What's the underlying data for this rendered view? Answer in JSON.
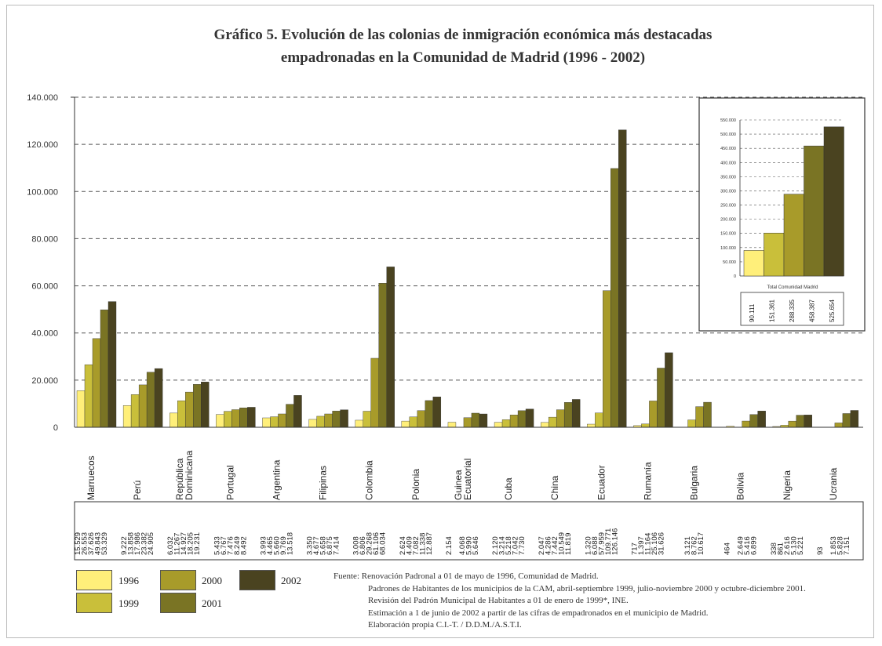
{
  "title": {
    "line1": "Gráfico 5. Evolución de las colonias de inmigración económica más destacadas",
    "line2": "empadronadas en la Comunidad de Madrid (1996 - 2002)"
  },
  "chart_data": [
    {
      "type": "bar",
      "title": "Gráfico 5. Evolución de las colonias de inmigración económica más destacadas empadronadas en la Comunidad de Madrid (1996 - 2002)",
      "categories": [
        "Marruecos",
        "Perú",
        "República Dominicana",
        "Portugal",
        "Argentina",
        "Filipinas",
        "Colombia",
        "Polonia",
        "Guinea Ecuatorial",
        "Cuba",
        "China",
        "Ecuador",
        "Rumanía",
        "Bulgaria",
        "Bolivia",
        "Nigeria",
        "Ucrania"
      ],
      "category_lines": [
        [
          "Marruecos"
        ],
        [
          "Perú"
        ],
        [
          "República",
          "Dominicana"
        ],
        [
          "Portugal"
        ],
        [
          "Argentina"
        ],
        [
          "Filipinas"
        ],
        [
          "Colombia"
        ],
        [
          "Polonia"
        ],
        [
          "Guinea",
          "Ecuatorial"
        ],
        [
          "Cuba"
        ],
        [
          "China"
        ],
        [
          "Ecuador"
        ],
        [
          "Rumanía"
        ],
        [
          "Bulgaria"
        ],
        [
          "Bolivia"
        ],
        [
          "Nigeria"
        ],
        [
          "Ucrania"
        ]
      ],
      "series": [
        {
          "name": "1996",
          "values": [
            15529,
            9222,
            6032,
            5433,
            3993,
            3350,
            3008,
            2624,
            2154,
            2120,
            2047,
            1320,
            717,
            0,
            464,
            338,
            93
          ]
        },
        {
          "name": "1999",
          "values": [
            26553,
            13858,
            11267,
            6767,
            4465,
            4677,
            6806,
            4409,
            0,
            3214,
            4286,
            6088,
            1397,
            3121,
            0,
            861,
            0
          ]
        },
        {
          "name": "2000",
          "values": [
            37626,
            17986,
            14927,
            7476,
            5660,
            5658,
            29268,
            7082,
            4068,
            5218,
            7442,
            57959,
            11164,
            8762,
            2649,
            2616,
            1853
          ]
        },
        {
          "name": "2001",
          "values": [
            49843,
            23382,
            18205,
            8249,
            9769,
            6875,
            61106,
            11338,
            5990,
            7042,
            10549,
            109771,
            25106,
            10617,
            5416,
            5130,
            5828
          ]
        },
        {
          "name": "2002",
          "values": [
            53329,
            24905,
            19231,
            8492,
            13518,
            7414,
            68034,
            12887,
            5646,
            7730,
            11819,
            126146,
            31626,
            0,
            6899,
            5221,
            7151
          ]
        }
      ],
      "table_values": [
        [
          "15.529",
          "26.553",
          "37.626",
          "49.843",
          "53.329"
        ],
        [
          "9.222",
          "13.858",
          "17.986",
          "23.382",
          "24.905"
        ],
        [
          "6.032",
          "11.267",
          "14.927",
          "18.205",
          "19.231"
        ],
        [
          "5.433",
          "6.767",
          "7.476",
          "8.249",
          "8.492"
        ],
        [
          "3.993",
          "4.465",
          "5.660",
          "9.769",
          "13.518"
        ],
        [
          "3.350",
          "4.677",
          "5.658",
          "6.875",
          "7.414"
        ],
        [
          "3.008",
          "6.806",
          "29.268",
          "61.106",
          "68.034"
        ],
        [
          "2.624",
          "4.409",
          "7.082",
          "11.338",
          "12.887"
        ],
        [
          "2.154",
          "",
          "4.068",
          "5.990",
          "5.646"
        ],
        [
          "2.120",
          "3.214",
          "5.218",
          "7.042",
          "7.730"
        ],
        [
          "2.047",
          "4.286",
          "7.442",
          "10.549",
          "11.819"
        ],
        [
          "1.320",
          "6.088",
          "57.959",
          "109.771",
          "126.146"
        ],
        [
          "717",
          "1.397",
          "11.164",
          "25.106",
          "31.626"
        ],
        [
          "",
          "3.121",
          "8.762",
          "10.617",
          ""
        ],
        [
          "464",
          "",
          "2.649",
          "5.416",
          "6.899"
        ],
        [
          "338",
          "861",
          "2.616",
          "5.130",
          "5.221"
        ],
        [
          "93",
          "",
          "1.853",
          "5.828",
          "7.151"
        ]
      ],
      "ylim": [
        0,
        140000
      ],
      "yticks": [
        "0",
        "20.000",
        "40.000",
        "60.000",
        "80.000",
        "100.000",
        "120.000",
        "140.000"
      ],
      "ytick_values": [
        0,
        20000,
        40000,
        60000,
        80000,
        100000,
        120000,
        140000
      ],
      "grid": "dashed horizontal"
    },
    {
      "type": "bar",
      "title": "",
      "categories": [
        "Total Comunidad Madrid"
      ],
      "series": [
        {
          "name": "1996",
          "values": [
            90111
          ]
        },
        {
          "name": "1999",
          "values": [
            151361
          ]
        },
        {
          "name": "2000",
          "values": [
            288335
          ]
        },
        {
          "name": "2001",
          "values": [
            458387
          ]
        },
        {
          "name": "2002",
          "values": [
            525654
          ]
        }
      ],
      "table_values": [
        "90.111",
        "151.361",
        "288.335",
        "458.387",
        "525.654"
      ],
      "ylim": [
        0,
        550000
      ],
      "yticks": [
        "0",
        "50.000",
        "100.000",
        "150.000",
        "200.000",
        "250.000",
        "300.000",
        "350.000",
        "400.000",
        "450.000",
        "500.000",
        "550.000"
      ],
      "ytick_values": [
        0,
        50000,
        100000,
        150000,
        200000,
        250000,
        300000,
        350000,
        400000,
        450000,
        500000,
        550000
      ],
      "placement": "inset top-right"
    }
  ],
  "colors": {
    "1996": "#ffef7a",
    "1999": "#c9bf3a",
    "2000": "#a89b2a",
    "2001": "#7a7424",
    "2002": "#4a4320",
    "grid": "#555555",
    "axis": "#333333"
  },
  "legend": [
    {
      "label": "1996",
      "key": "1996"
    },
    {
      "label": "1999",
      "key": "1999"
    },
    {
      "label": "2000",
      "key": "2000"
    },
    {
      "label": "2001",
      "key": "2001"
    },
    {
      "label": "2002",
      "key": "2002"
    }
  ],
  "source": {
    "label": "Fuente:",
    "line1": "Renovación Padronal a 01 de mayo de 1996, Comunidad de Madrid.",
    "line2": "Padrones de Habitantes de los municipios de la CAM, abril-septiembre 1999, julio-noviembre 2000 y octubre-diciembre 2001.",
    "line3": "Revisión del Padrón Municipal de Habitantes a 01 de enero de 1999*, INE.",
    "line4": "Estimación a 1 de junio de 2002 a partir de las cifras de empadronados en el municipio de Madrid.",
    "line5": "Elaboración propia C.I.-T. / D.D.M./A.S.T.I."
  }
}
